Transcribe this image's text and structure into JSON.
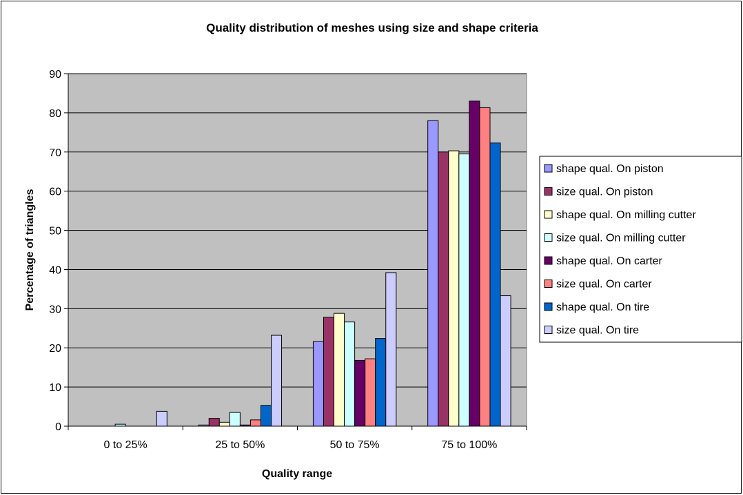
{
  "chart_data": {
    "type": "bar",
    "title": "Quality distribution of meshes using size and shape criteria",
    "xlabel": "Quality range",
    "ylabel": "Percentage of triangles",
    "ylim": [
      0,
      90
    ],
    "yticks": [
      0,
      10,
      20,
      30,
      40,
      50,
      60,
      70,
      80,
      90
    ],
    "grid": true,
    "legend_position": "right",
    "categories": [
      "0 to 25%",
      "25 to 50%",
      "50 to 75%",
      "75 to 100%"
    ],
    "series": [
      {
        "name": "shape qual. On piston",
        "color": "#9999ff",
        "values": [
          0,
          0.3,
          21.6,
          78
        ]
      },
      {
        "name": "size qual. On piston",
        "color": "#993366",
        "values": [
          0,
          2,
          27.8,
          70
        ]
      },
      {
        "name": "shape qual. On milling cutter",
        "color": "#ffffcc",
        "values": [
          0,
          1,
          28.8,
          70.3
        ]
      },
      {
        "name": "size qual. On milling cutter",
        "color": "#ccffff",
        "values": [
          0.5,
          3.5,
          26.6,
          69.5
        ]
      },
      {
        "name": "shape qual. On carter",
        "color": "#660066",
        "values": [
          0,
          0.3,
          16.8,
          83
        ]
      },
      {
        "name": "size qual. On carter",
        "color": "#ff8080",
        "values": [
          0,
          1.6,
          17.2,
          81.3
        ]
      },
      {
        "name": "shape qual. On tire",
        "color": "#0066cc",
        "values": [
          0,
          5.3,
          22.4,
          72.3
        ]
      },
      {
        "name": "size qual. On tire",
        "color": "#ccccff",
        "values": [
          3.8,
          23.2,
          39.2,
          33.3
        ]
      }
    ]
  }
}
